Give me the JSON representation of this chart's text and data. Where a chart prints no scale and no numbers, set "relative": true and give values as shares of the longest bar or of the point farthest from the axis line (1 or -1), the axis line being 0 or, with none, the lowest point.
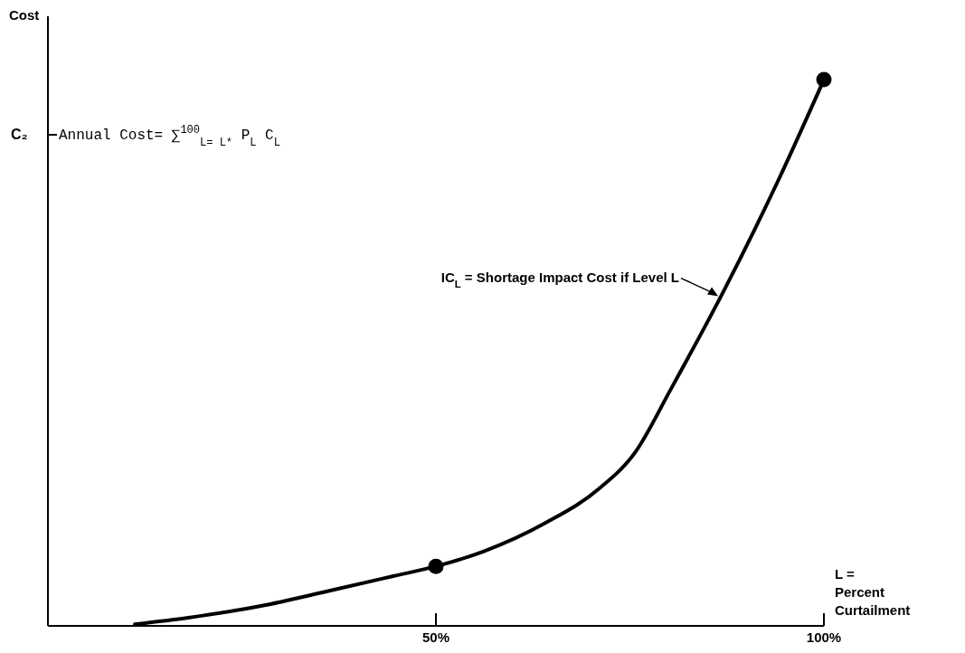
{
  "chart_data": {
    "type": "line",
    "relative": true,
    "ylabel": "Cost",
    "xlabel": "L = Percent Curtailment",
    "xlim": [
      0,
      100
    ],
    "xticks": [
      {
        "value": 50,
        "label": "50%"
      },
      {
        "value": 100,
        "label": "100%"
      }
    ],
    "grid": false,
    "series": [
      {
        "color": "#000000",
        "x": [
          11.2,
          18.1,
          27.3,
          36.5,
          44.5,
          50,
          56.1,
          64.2,
          71.1,
          75.7,
          80.3,
          87.2,
          94.1,
          100
        ],
        "values": [
          0.003,
          0.015,
          0.036,
          0.065,
          0.091,
          0.109,
          0.136,
          0.189,
          0.252,
          0.318,
          0.434,
          0.616,
          0.815,
          1
        ]
      },
      {
        "type": "scatter",
        "marker": "circle",
        "color": "#000000",
        "x": [
          50,
          100
        ],
        "values": [
          0.109,
          1
        ]
      }
    ],
    "annotations": [
      "C₂",
      "Annual Cost= ∑$^{100}$$_{L= L*}$ P$_{L}$ C$_{L}$",
      {
        "text": "IC$_{L}$ = Shortage Impact Cost if Level L",
        "x": 86.6,
        "y": 0.6
      }
    ]
  }
}
